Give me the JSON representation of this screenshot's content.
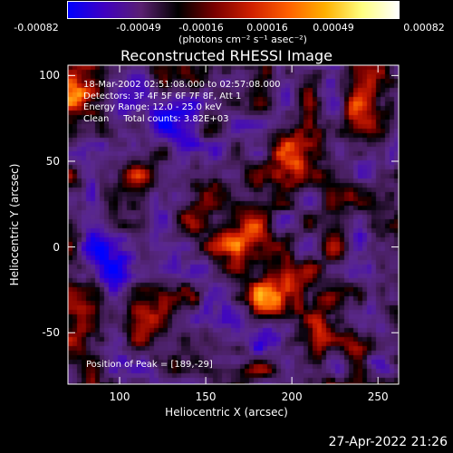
{
  "colorbar": {
    "ticks": [
      "-0.00082",
      "-0.00049",
      "-0.00016",
      "0.00016",
      "0.00049",
      "0.00082"
    ],
    "units": "(photons cm⁻² s⁻¹ asec⁻²)",
    "colors": [
      "#0000ff",
      "#4000c0",
      "#5a2070",
      "#000000",
      "#7a0000",
      "#d02000",
      "#ff6000",
      "#ffb000",
      "#ffff80",
      "#ffffff"
    ]
  },
  "info": {
    "line1": "18-Mar-2002 02:51:08.000 to 02:57:08.000",
    "line2": "Detectors: 3F 4F 5F 6F 7F 8F, Att 1",
    "line3": "Energy Range: 12.0 - 25.0 keV",
    "line4": "Clean     Total counts: 3.82E+03",
    "peak": "Position of Peak = [189,-29]"
  },
  "timestamp": "27-Apr-2022 21:26",
  "chart_data": {
    "type": "heatmap",
    "title": "Reconstructed RHESSI Image",
    "xlabel": "Heliocentric X (arcsec)",
    "ylabel": "Heliocentric Y (arcsec)",
    "xlim": [
      70,
      262
    ],
    "ylim": [
      -80,
      106
    ],
    "xticks": [
      100,
      150,
      200,
      250
    ],
    "yticks": [
      100,
      50,
      0,
      -50
    ],
    "colorbar_range": [
      -0.00082,
      0.00082
    ],
    "peak_position": [
      189,
      -29
    ],
    "bright_sources": [
      {
        "x": 75,
        "y": 95,
        "level": 0.00075
      },
      {
        "x": 189,
        "y": -29,
        "level": 0.00082
      },
      {
        "x": 172,
        "y": 12,
        "level": 0.0006
      },
      {
        "x": 218,
        "y": -52,
        "level": 0.0007
      },
      {
        "x": 200,
        "y": 50,
        "level": 0.0004
      },
      {
        "x": 105,
        "y": 45,
        "level": 0.00035
      },
      {
        "x": 115,
        "y": -35,
        "level": 0.0004
      },
      {
        "x": 145,
        "y": 35,
        "level": 0.0004
      },
      {
        "x": 240,
        "y": 75,
        "level": 0.0003
      }
    ],
    "dark_sources": [
      {
        "x": 195,
        "y": -50,
        "level": -0.0006
      },
      {
        "x": 130,
        "y": 70,
        "level": -0.0004
      },
      {
        "x": 90,
        "y": -10,
        "level": -0.0003
      },
      {
        "x": 245,
        "y": -40,
        "level": -0.0003
      },
      {
        "x": 160,
        "y": -60,
        "level": -0.0003
      }
    ]
  }
}
